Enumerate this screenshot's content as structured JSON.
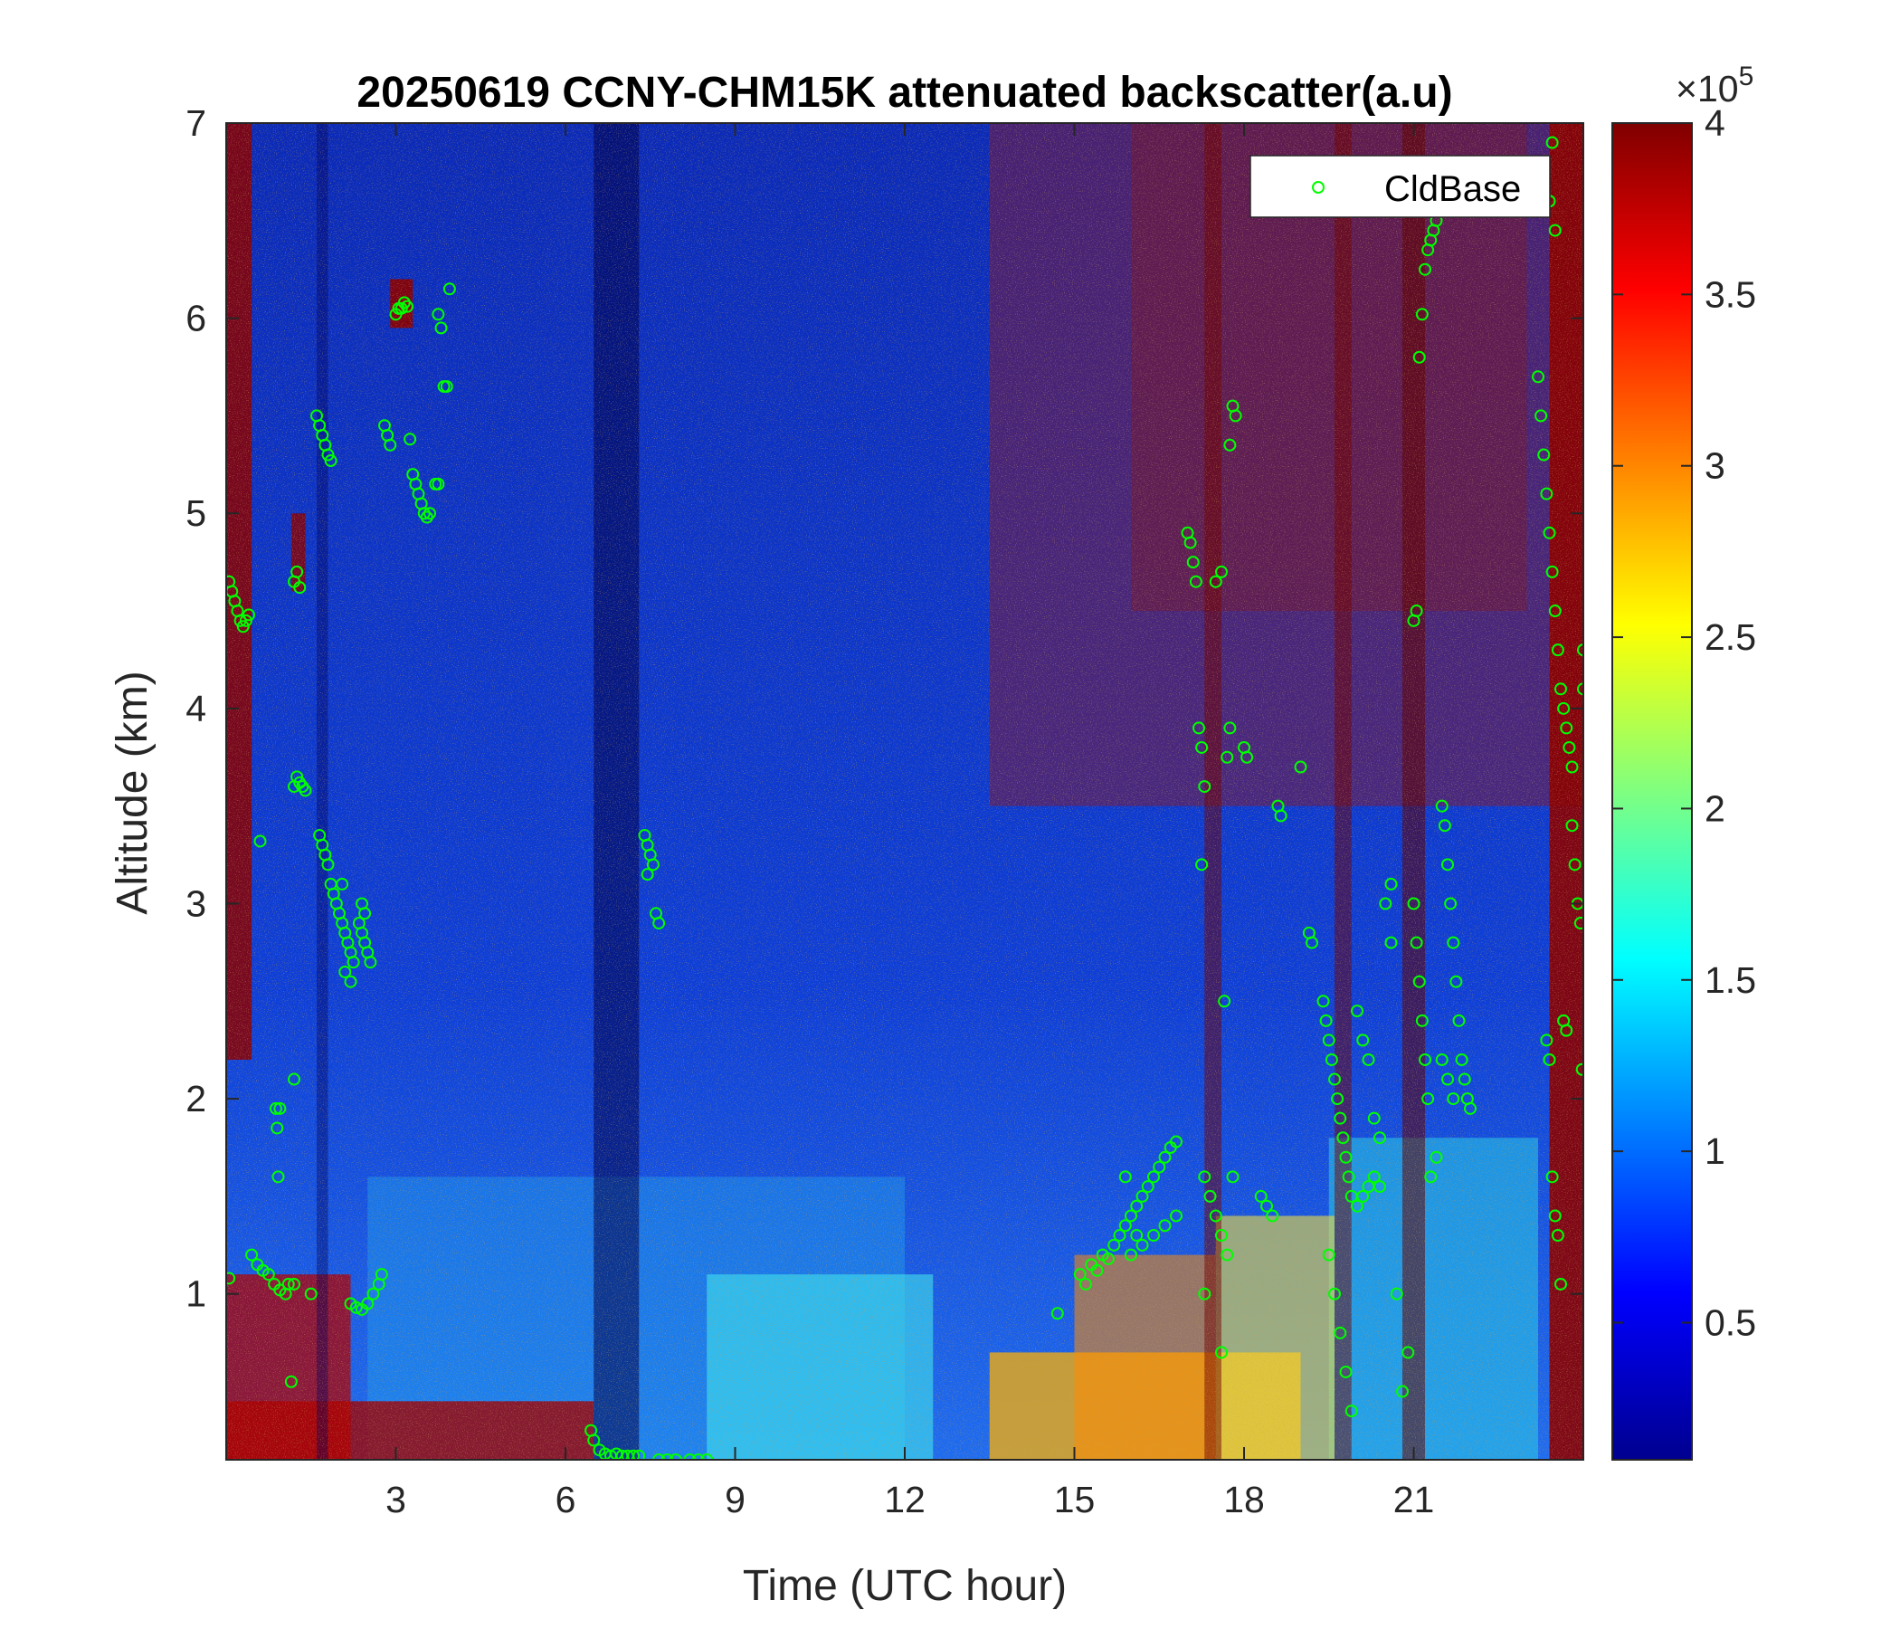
{
  "chart_data": {
    "type": "heatmap",
    "title": "20250619 CCNY-CHM15K attenuated backscatter(a.u)",
    "xlabel": "Time (UTC hour)",
    "ylabel": "Altitude (km)",
    "xlim": [
      0,
      24
    ],
    "ylim": [
      0.15,
      7
    ],
    "x_ticks": [
      3,
      6,
      9,
      12,
      15,
      18,
      21
    ],
    "y_ticks": [
      1,
      2,
      3,
      4,
      5,
      6,
      7
    ],
    "colorbar": {
      "colormap": "jet",
      "range": [
        0.1,
        4
      ],
      "ticks": [
        0.5,
        1,
        1.5,
        2,
        2.5,
        3,
        3.5,
        4
      ],
      "exponent_label": "×10",
      "exponent": "5"
    },
    "legend": {
      "position": "top-right",
      "entries": [
        {
          "name": "CldBase",
          "marker": "circle",
          "color": "#00ff00"
        }
      ]
    },
    "series": [
      {
        "name": "CldBase",
        "type": "scatter",
        "points": [
          [
            0.05,
            4.65
          ],
          [
            0.1,
            4.6
          ],
          [
            0.15,
            4.55
          ],
          [
            0.2,
            4.5
          ],
          [
            0.25,
            4.45
          ],
          [
            0.3,
            4.42
          ],
          [
            0.35,
            4.45
          ],
          [
            0.4,
            4.48
          ],
          [
            0.05,
            1.08
          ],
          [
            0.45,
            1.2
          ],
          [
            0.55,
            1.15
          ],
          [
            0.65,
            1.12
          ],
          [
            0.75,
            1.1
          ],
          [
            0.85,
            1.05
          ],
          [
            0.95,
            1.02
          ],
          [
            1.05,
            1.0
          ],
          [
            1.2,
            1.05
          ],
          [
            1.5,
            1.0
          ],
          [
            0.6,
            3.32
          ],
          [
            0.88,
            1.95
          ],
          [
            0.9,
            1.85
          ],
          [
            0.92,
            1.6
          ],
          [
            0.95,
            1.95
          ],
          [
            1.15,
            0.55
          ],
          [
            1.2,
            2.1
          ],
          [
            1.1,
            1.05
          ],
          [
            1.2,
            3.6
          ],
          [
            1.25,
            3.65
          ],
          [
            1.3,
            3.62
          ],
          [
            1.35,
            3.6
          ],
          [
            1.4,
            3.58
          ],
          [
            1.2,
            4.65
          ],
          [
            1.25,
            4.7
          ],
          [
            1.3,
            4.62
          ],
          [
            1.6,
            5.5
          ],
          [
            1.65,
            5.45
          ],
          [
            1.7,
            5.4
          ],
          [
            1.75,
            5.35
          ],
          [
            1.8,
            5.3
          ],
          [
            1.85,
            5.27
          ],
          [
            1.65,
            3.35
          ],
          [
            1.7,
            3.3
          ],
          [
            1.75,
            3.25
          ],
          [
            1.8,
            3.2
          ],
          [
            1.85,
            3.1
          ],
          [
            1.9,
            3.05
          ],
          [
            1.95,
            3.0
          ],
          [
            2.0,
            2.95
          ],
          [
            2.05,
            2.9
          ],
          [
            2.1,
            2.85
          ],
          [
            2.15,
            2.8
          ],
          [
            2.2,
            2.75
          ],
          [
            2.25,
            2.7
          ],
          [
            2.05,
            3.1
          ],
          [
            2.1,
            2.65
          ],
          [
            2.2,
            2.6
          ],
          [
            2.35,
            2.9
          ],
          [
            2.4,
            2.85
          ],
          [
            2.45,
            2.8
          ],
          [
            2.5,
            2.75
          ],
          [
            2.55,
            2.7
          ],
          [
            2.4,
            3.0
          ],
          [
            2.45,
            2.95
          ],
          [
            2.2,
            0.95
          ],
          [
            2.3,
            0.93
          ],
          [
            2.4,
            0.92
          ],
          [
            2.5,
            0.95
          ],
          [
            2.6,
            1.0
          ],
          [
            2.7,
            1.05
          ],
          [
            2.75,
            1.1
          ],
          [
            2.8,
            5.45
          ],
          [
            2.85,
            5.4
          ],
          [
            2.9,
            5.35
          ],
          [
            3.0,
            6.02
          ],
          [
            3.05,
            6.05
          ],
          [
            3.1,
            6.05
          ],
          [
            3.15,
            6.08
          ],
          [
            3.2,
            6.06
          ],
          [
            3.3,
            5.2
          ],
          [
            3.35,
            5.15
          ],
          [
            3.4,
            5.1
          ],
          [
            3.45,
            5.05
          ],
          [
            3.5,
            5.0
          ],
          [
            3.55,
            4.98
          ],
          [
            3.6,
            5.0
          ],
          [
            3.7,
            5.15
          ],
          [
            3.75,
            5.15
          ],
          [
            3.25,
            5.38
          ],
          [
            3.75,
            6.02
          ],
          [
            3.8,
            5.95
          ],
          [
            3.85,
            5.65
          ],
          [
            3.9,
            5.65
          ],
          [
            3.95,
            6.15
          ],
          [
            6.45,
            0.3
          ],
          [
            6.5,
            0.25
          ],
          [
            6.6,
            0.2
          ],
          [
            6.7,
            0.18
          ],
          [
            6.8,
            0.17
          ],
          [
            6.9,
            0.18
          ],
          [
            7.0,
            0.17
          ],
          [
            7.1,
            0.17
          ],
          [
            7.2,
            0.17
          ],
          [
            7.3,
            0.17
          ],
          [
            7.65,
            0.15
          ],
          [
            7.8,
            0.15
          ],
          [
            7.95,
            0.15
          ],
          [
            8.2,
            0.15
          ],
          [
            8.35,
            0.15
          ],
          [
            8.5,
            0.15
          ],
          [
            7.4,
            3.35
          ],
          [
            7.45,
            3.3
          ],
          [
            7.5,
            3.25
          ],
          [
            7.55,
            3.2
          ],
          [
            7.45,
            3.15
          ],
          [
            7.6,
            2.95
          ],
          [
            7.65,
            2.9
          ],
          [
            14.7,
            0.9
          ],
          [
            15.1,
            1.1
          ],
          [
            15.2,
            1.05
          ],
          [
            15.3,
            1.15
          ],
          [
            15.4,
            1.12
          ],
          [
            15.5,
            1.2
          ],
          [
            15.6,
            1.18
          ],
          [
            15.7,
            1.25
          ],
          [
            15.8,
            1.3
          ],
          [
            15.9,
            1.35
          ],
          [
            16.0,
            1.4
          ],
          [
            16.1,
            1.45
          ],
          [
            16.2,
            1.5
          ],
          [
            16.3,
            1.55
          ],
          [
            16.4,
            1.6
          ],
          [
            16.5,
            1.65
          ],
          [
            16.6,
            1.7
          ],
          [
            16.7,
            1.75
          ],
          [
            16.8,
            1.78
          ],
          [
            16.0,
            1.2
          ],
          [
            16.2,
            1.25
          ],
          [
            16.4,
            1.3
          ],
          [
            16.6,
            1.35
          ],
          [
            16.8,
            1.4
          ],
          [
            15.9,
            1.6
          ],
          [
            16.1,
            1.3
          ],
          [
            17.0,
            4.9
          ],
          [
            17.05,
            4.85
          ],
          [
            17.1,
            4.75
          ],
          [
            17.15,
            4.65
          ],
          [
            17.2,
            3.9
          ],
          [
            17.25,
            3.8
          ],
          [
            17.3,
            3.6
          ],
          [
            17.25,
            3.2
          ],
          [
            17.5,
            4.65
          ],
          [
            17.6,
            4.7
          ],
          [
            17.7,
            3.75
          ],
          [
            17.75,
            3.9
          ],
          [
            17.65,
            2.5
          ],
          [
            17.8,
            5.55
          ],
          [
            17.85,
            5.5
          ],
          [
            17.75,
            5.35
          ],
          [
            17.3,
            1.6
          ],
          [
            17.4,
            1.5
          ],
          [
            17.5,
            1.4
          ],
          [
            17.6,
            1.3
          ],
          [
            17.7,
            1.2
          ],
          [
            17.8,
            1.6
          ],
          [
            17.6,
            0.7
          ],
          [
            17.3,
            1.0
          ],
          [
            18.0,
            3.8
          ],
          [
            18.05,
            3.75
          ],
          [
            18.3,
            1.5
          ],
          [
            18.4,
            1.45
          ],
          [
            18.5,
            1.4
          ],
          [
            18.6,
            3.5
          ],
          [
            18.65,
            3.45
          ],
          [
            19.0,
            3.7
          ],
          [
            19.15,
            2.85
          ],
          [
            19.2,
            2.8
          ],
          [
            19.4,
            2.5
          ],
          [
            19.45,
            2.4
          ],
          [
            19.5,
            2.3
          ],
          [
            19.55,
            2.2
          ],
          [
            19.6,
            2.1
          ],
          [
            19.65,
            2.0
          ],
          [
            19.7,
            1.9
          ],
          [
            19.75,
            1.8
          ],
          [
            19.8,
            1.7
          ],
          [
            19.85,
            1.6
          ],
          [
            19.9,
            1.5
          ],
          [
            20.0,
            1.45
          ],
          [
            20.1,
            1.5
          ],
          [
            20.2,
            1.55
          ],
          [
            20.3,
            1.6
          ],
          [
            20.4,
            1.55
          ],
          [
            19.5,
            1.2
          ],
          [
            19.6,
            1.0
          ],
          [
            19.7,
            0.8
          ],
          [
            19.8,
            0.6
          ],
          [
            19.9,
            0.4
          ],
          [
            20.0,
            2.45
          ],
          [
            20.1,
            2.3
          ],
          [
            20.2,
            2.2
          ],
          [
            20.3,
            1.9
          ],
          [
            20.4,
            1.8
          ],
          [
            20.5,
            3.0
          ],
          [
            20.6,
            3.1
          ],
          [
            20.6,
            2.8
          ],
          [
            20.7,
            1.0
          ],
          [
            20.8,
            0.5
          ],
          [
            20.9,
            0.7
          ],
          [
            21.0,
            3.0
          ],
          [
            21.05,
            2.8
          ],
          [
            21.1,
            2.6
          ],
          [
            21.15,
            2.4
          ],
          [
            21.2,
            2.2
          ],
          [
            21.25,
            2.0
          ],
          [
            21.0,
            4.45
          ],
          [
            21.05,
            4.5
          ],
          [
            21.1,
            5.8
          ],
          [
            21.15,
            6.02
          ],
          [
            21.2,
            6.25
          ],
          [
            21.25,
            6.35
          ],
          [
            21.3,
            6.4
          ],
          [
            21.35,
            6.45
          ],
          [
            21.4,
            6.5
          ],
          [
            21.5,
            3.5
          ],
          [
            21.55,
            3.4
          ],
          [
            21.6,
            3.2
          ],
          [
            21.65,
            3.0
          ],
          [
            21.7,
            2.8
          ],
          [
            21.75,
            2.6
          ],
          [
            21.8,
            2.4
          ],
          [
            21.85,
            2.2
          ],
          [
            21.9,
            2.1
          ],
          [
            21.95,
            2.0
          ],
          [
            22.0,
            1.95
          ],
          [
            21.5,
            2.2
          ],
          [
            21.6,
            2.1
          ],
          [
            21.7,
            2.0
          ],
          [
            21.4,
            1.7
          ],
          [
            21.3,
            1.6
          ],
          [
            23.2,
            5.7
          ],
          [
            23.25,
            5.5
          ],
          [
            23.3,
            5.3
          ],
          [
            23.35,
            5.1
          ],
          [
            23.4,
            4.9
          ],
          [
            23.45,
            4.7
          ],
          [
            23.5,
            4.5
          ],
          [
            23.55,
            4.3
          ],
          [
            23.6,
            4.1
          ],
          [
            23.65,
            4.0
          ],
          [
            23.7,
            3.9
          ],
          [
            23.75,
            3.8
          ],
          [
            23.8,
            3.7
          ],
          [
            23.4,
            6.6
          ],
          [
            23.45,
            6.9
          ],
          [
            23.5,
            6.45
          ],
          [
            23.35,
            2.3
          ],
          [
            23.4,
            2.2
          ],
          [
            23.45,
            1.6
          ],
          [
            23.5,
            1.4
          ],
          [
            23.55,
            1.3
          ],
          [
            23.6,
            1.05
          ],
          [
            23.65,
            2.4
          ],
          [
            23.7,
            2.35
          ],
          [
            23.8,
            3.4
          ],
          [
            23.85,
            3.2
          ],
          [
            23.9,
            3.0
          ],
          [
            23.95,
            2.9
          ],
          [
            24.0,
            4.3
          ],
          [
            24.0,
            4.1
          ],
          [
            23.98,
            2.15
          ]
        ]
      }
    ]
  }
}
